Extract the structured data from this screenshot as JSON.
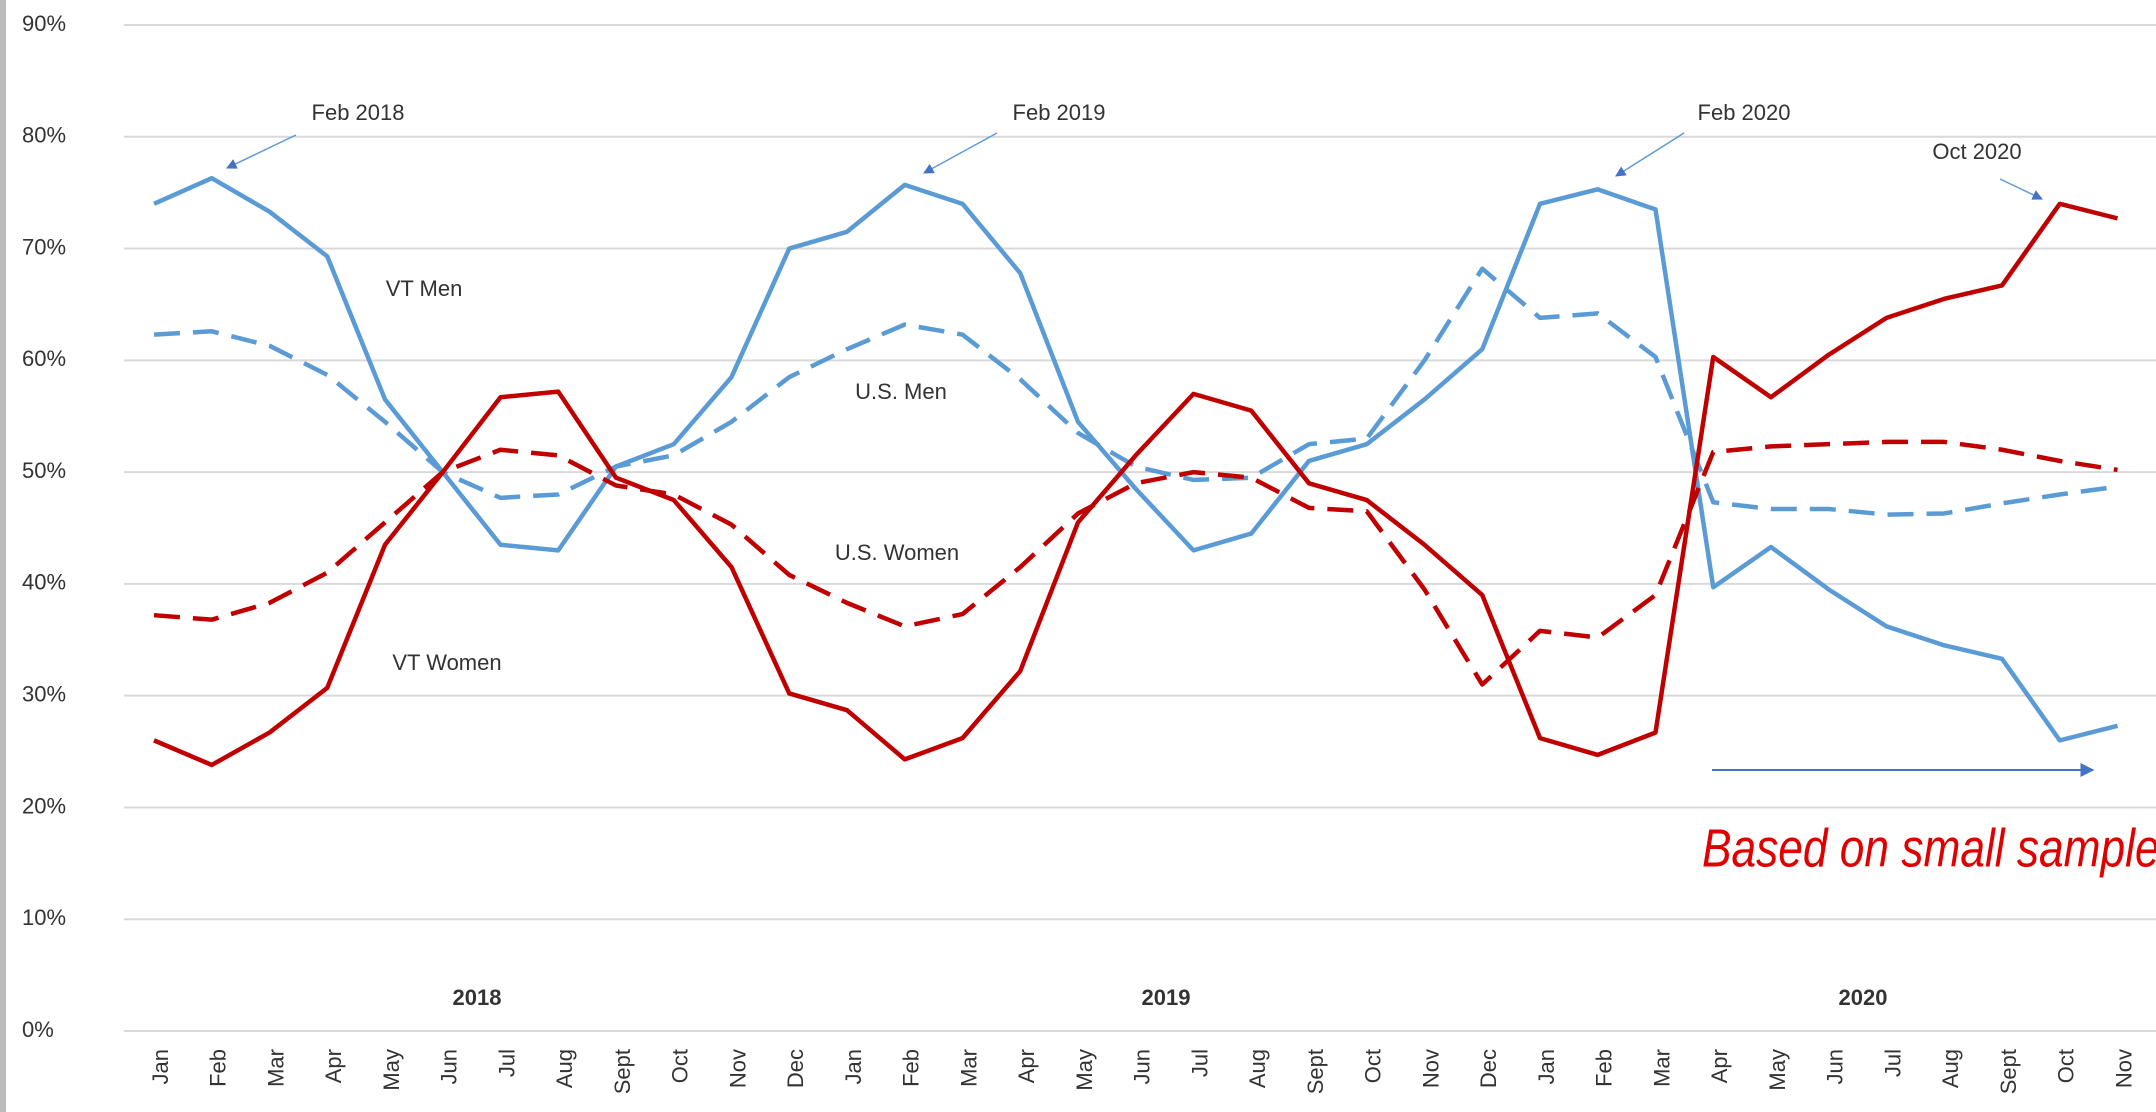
{
  "chart_data": {
    "type": "line",
    "categories": [
      "Jan",
      "Feb",
      "Mar",
      "Apr",
      "May",
      "Jun",
      "Jul",
      "Aug",
      "Sept",
      "Oct",
      "Nov",
      "Dec",
      "Jan",
      "Feb",
      "Mar",
      "Apr",
      "May",
      "Jun",
      "Jul",
      "Aug",
      "Sept",
      "Oct",
      "Nov",
      "Dec",
      "Jan",
      "Feb",
      "Mar",
      "Apr",
      "May",
      "Jun",
      "Jul",
      "Aug",
      "Sept",
      "Oct",
      "Nov"
    ],
    "year_labels": [
      "2018",
      "2019",
      "2020"
    ],
    "series": [
      {
        "name": "VT Men",
        "color": "#5b9bd5",
        "dash": false,
        "values": [
          74,
          76.3,
          73.3,
          69.3,
          56.5,
          50,
          43.5,
          43,
          50.5,
          52.5,
          58.5,
          70,
          71.5,
          75.7,
          74,
          67.8,
          54.5,
          48.5,
          43,
          44.5,
          51,
          52.5,
          56.5,
          61,
          74,
          75.3,
          73.5,
          39.7,
          43.3,
          39.5,
          36.2,
          34.5,
          33.3,
          26,
          27.3
        ]
      },
      {
        "name": "U.S. Men",
        "color": "#5b9bd5",
        "dash": true,
        "values": [
          62.3,
          62.6,
          61.3,
          58.7,
          54.5,
          50,
          47.7,
          48,
          50.5,
          51.5,
          54.5,
          58.5,
          61,
          63.2,
          62.3,
          58.3,
          53.5,
          50.5,
          49.3,
          49.5,
          52.5,
          53,
          60,
          68.2,
          63.8,
          64.2,
          60.3,
          47.3,
          46.7,
          46.7,
          46.2,
          46.3,
          47.2,
          48,
          48.7
        ]
      },
      {
        "name": "U.S. Women",
        "color": "#c00000",
        "dash": true,
        "values": [
          37.2,
          36.8,
          38.3,
          41,
          45.5,
          50,
          52,
          51.5,
          48.8,
          48,
          45.3,
          40.8,
          38.3,
          36.2,
          37.3,
          41.5,
          46.3,
          49,
          50,
          49.5,
          46.8,
          46.5,
          39.5,
          31,
          35.8,
          35.2,
          39,
          51.8,
          52.3,
          52.5,
          52.7,
          52.7,
          52,
          51,
          50.2
        ]
      },
      {
        "name": "VT Women",
        "color": "#c00000",
        "dash": false,
        "values": [
          26,
          23.8,
          26.7,
          30.7,
          43.5,
          50,
          56.7,
          57.2,
          49.5,
          47.5,
          41.5,
          30.2,
          28.7,
          24.3,
          26.2,
          32.2,
          45.5,
          51.5,
          57,
          55.5,
          49,
          47.5,
          43.5,
          39,
          26.2,
          24.7,
          26.7,
          60.3,
          56.7,
          60.5,
          63.8,
          65.5,
          66.7,
          74,
          72.7
        ]
      }
    ],
    "annotations": [
      "Feb 2018",
      "Feb 2019",
      "Feb 2020",
      "Oct 2020"
    ],
    "note": "Based on small sample",
    "ylim": [
      0,
      90
    ],
    "yticks": [
      {
        "value": 0,
        "label": "0%"
      },
      {
        "value": 10,
        "label": "10%"
      },
      {
        "value": 20,
        "label": "20%"
      },
      {
        "value": 30,
        "label": "30%"
      },
      {
        "value": 40,
        "label": "40%"
      },
      {
        "value": 50,
        "label": "50%"
      },
      {
        "value": 60,
        "label": "60%"
      },
      {
        "value": 70,
        "label": "70%"
      },
      {
        "value": 80,
        "label": "80%"
      },
      {
        "value": 90,
        "label": "90%"
      }
    ],
    "grid": true
  }
}
